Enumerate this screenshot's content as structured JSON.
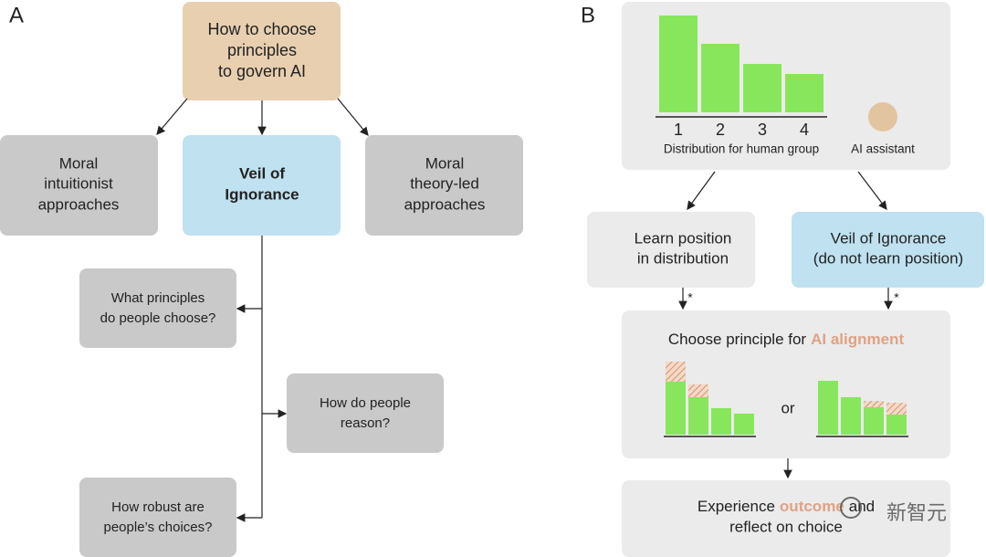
{
  "panel_a": {
    "label": "A",
    "root": {
      "lines": [
        "How to choose",
        "principles",
        "to govern AI"
      ]
    },
    "options": [
      {
        "lines": [
          "Moral",
          "intuitionist",
          "approaches"
        ]
      },
      {
        "lines": [
          "Veil of",
          "Ignorance"
        ]
      },
      {
        "lines": [
          "Moral",
          "theory-led",
          "approaches"
        ]
      }
    ],
    "questions": [
      {
        "lines": [
          "What principles",
          "do people choose?"
        ]
      },
      {
        "lines": [
          "How do people",
          "reason?"
        ]
      },
      {
        "lines": [
          "How robust are",
          "people’s choices?"
        ]
      }
    ]
  },
  "panel_b": {
    "label": "B",
    "positions": [
      "1",
      "2",
      "3",
      "4"
    ],
    "distribution_caption": "Distribution for human group",
    "assistant_caption": "AI assistant",
    "learn": {
      "lines": [
        "Learn position",
        "in distribution"
      ]
    },
    "veil": {
      "lines": [
        "Veil of Ignorance",
        "(do not learn position)"
      ]
    },
    "footnote_marks": [
      "*",
      "*"
    ],
    "choose": {
      "text": "Choose principle for",
      "highlight": "AI alignment"
    },
    "or": "or",
    "experience": {
      "before": "Experience",
      "highlight": "outcome",
      "after": "and",
      "line2": "reflect on choice"
    }
  },
  "watermark": "新智元"
}
